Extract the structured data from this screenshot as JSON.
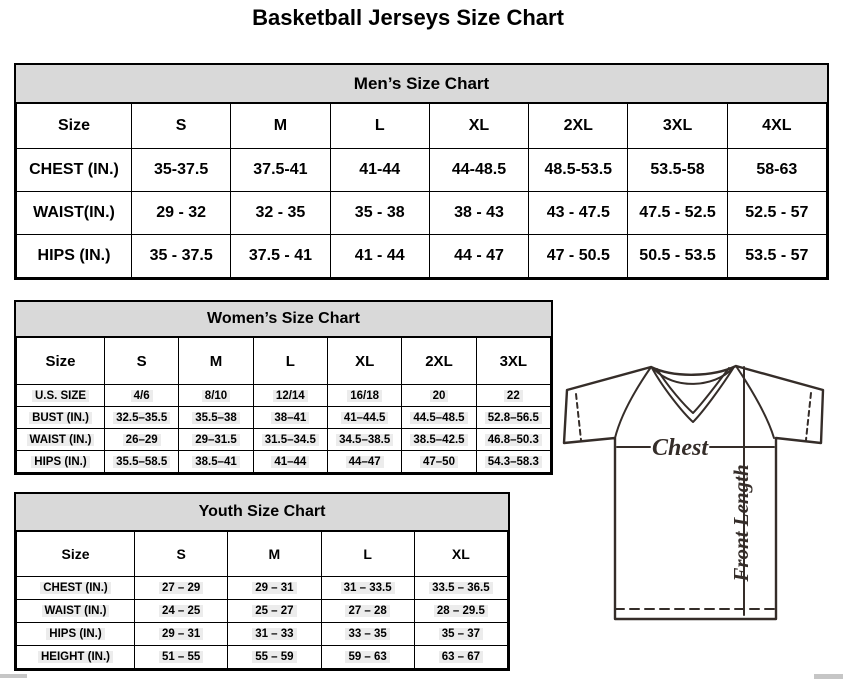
{
  "page": {
    "title": "Basketball Jerseys Size Chart"
  },
  "colors": {
    "header_fill": "#d9d9d9",
    "table_border": "#000000",
    "text": "#000000",
    "diagram_stroke": "#352d29",
    "highlight": "#ececec"
  },
  "mens_table": {
    "title": "Men’s Size Chart",
    "header": [
      "Size",
      "S",
      "M",
      "L",
      "XL",
      "2XL",
      "3XL",
      "4XL"
    ],
    "rows": [
      [
        "CHEST (IN.)",
        "35-37.5",
        "37.5-41",
        "41-44",
        "44-48.5",
        "48.5-53.5",
        "53.5-58",
        "58-63"
      ],
      [
        "WAIST(IN.)",
        "29 - 32",
        "32 - 35",
        "35 - 38",
        "38 - 43",
        "43 - 47.5",
        "47.5 - 52.5",
        "52.5 - 57"
      ],
      [
        "HIPS (IN.)",
        "35 - 37.5",
        "37.5 - 41",
        "41 - 44",
        "44 - 47",
        "47 - 50.5",
        "50.5 - 53.5",
        "53.5 - 57"
      ]
    ]
  },
  "womens_table": {
    "title": "Women’s Size Chart",
    "header": [
      "Size",
      "S",
      "M",
      "L",
      "XL",
      "2XL",
      "3XL"
    ],
    "rows": [
      [
        "U.S. SIZE",
        "4/6",
        "8/10",
        "12/14",
        "16/18",
        "20",
        "22"
      ],
      [
        "BUST (IN.)",
        "32.5–35.5",
        "35.5–38",
        "38–41",
        "41–44.5",
        "44.5–48.5",
        "52.8–56.5"
      ],
      [
        "WAIST (IN.)",
        "26–29",
        "29–31.5",
        "31.5–34.5",
        "34.5–38.5",
        "38.5–42.5",
        "46.8–50.3"
      ],
      [
        "HIPS (IN.)",
        "35.5–58.5",
        "38.5–41",
        "41–44",
        "44–47",
        "47–50",
        "54.3–58.3"
      ]
    ]
  },
  "youth_table": {
    "title": "Youth Size Chart",
    "header": [
      "Size",
      "S",
      "M",
      "L",
      "XL"
    ],
    "rows": [
      [
        "CHEST (IN.)",
        "27 – 29",
        "29 – 31",
        "31 – 33.5",
        "33.5 – 36.5"
      ],
      [
        "WAIST (IN.)",
        "24 – 25",
        "25 – 27",
        "27 – 28",
        "28 – 29.5"
      ],
      [
        "HIPS (IN.)",
        "29 – 31",
        "31 – 33",
        "33 – 35",
        "35 – 37"
      ],
      [
        "HEIGHT (IN.)",
        "51 – 55",
        "55 – 59",
        "59 – 63",
        "63 – 67"
      ]
    ]
  },
  "diagram": {
    "chest_label": "Chest",
    "front_length_label": "Front Length"
  }
}
